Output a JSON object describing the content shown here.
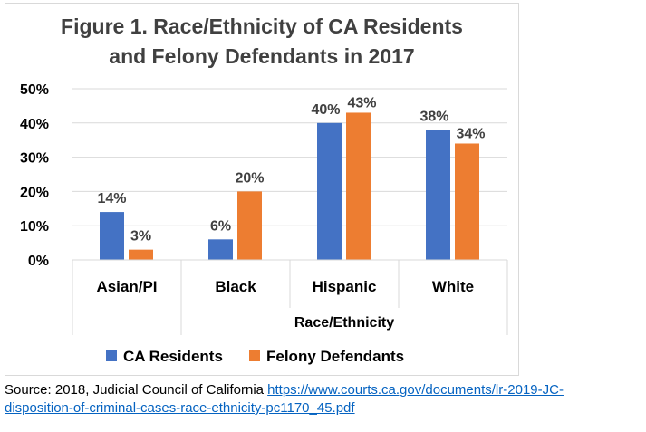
{
  "chart_data": {
    "type": "bar",
    "title": [
      "Figure 1. Race/Ethnicity of CA Residents",
      "and Felony Defendants in 2017"
    ],
    "categories": [
      "Asian/PI",
      "Black",
      "Hispanic",
      "White"
    ],
    "series": [
      {
        "name": "CA Residents",
        "values": [
          14,
          6,
          40,
          38
        ],
        "labels": [
          "14%",
          "6%",
          "40%",
          "38%"
        ],
        "color": "#4472c4"
      },
      {
        "name": "Felony Defendants",
        "values": [
          3,
          20,
          43,
          34
        ],
        "labels": [
          "3%",
          "20%",
          "43%",
          "34%"
        ],
        "color": "#ed7d31"
      }
    ],
    "xlabel": "Race/Ethnicity",
    "ylabel": "",
    "ylim": [
      0,
      50
    ],
    "yticks": [
      {
        "value": 0,
        "label": "0%"
      },
      {
        "value": 10,
        "label": "10%"
      },
      {
        "value": 20,
        "label": "20%"
      },
      {
        "value": 30,
        "label": "30%"
      },
      {
        "value": 40,
        "label": "40%"
      },
      {
        "value": 50,
        "label": "50%"
      }
    ],
    "grid": true,
    "legend_position": "bottom"
  },
  "source": {
    "prefix": "Source: 2018, Judicial Council of California ",
    "link_line1": "https://www.courts.ca.gov/documents/lr-2019-JC-",
    "link_line2": "disposition-of-criminal-cases-race-ethnicity-pc1170_45.pdf"
  }
}
